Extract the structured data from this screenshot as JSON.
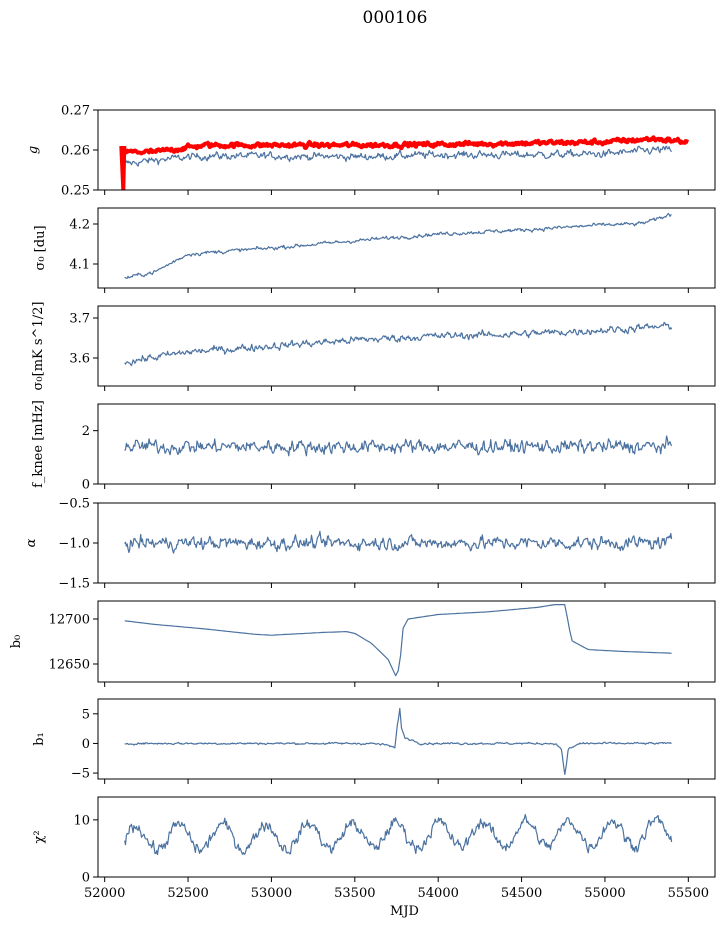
{
  "figure_title": "000106",
  "colors": {
    "series": "#4c72a0",
    "reference": "#ff0000",
    "axis": "#000000"
  },
  "chart_data": [
    {
      "type": "line",
      "ylabel": "g",
      "ylim": [
        0.25,
        0.27
      ],
      "yticks": [
        0.25,
        0.26,
        0.27
      ],
      "yticklabels": [
        "0.25",
        "0.26",
        "0.27"
      ],
      "grid": false,
      "xlim": [
        51960,
        55660
      ],
      "series": [
        {
          "role": "measured",
          "color": "#4c72a0",
          "base": [
            [
              52120,
              0.2565
            ],
            [
              52300,
              0.2575
            ],
            [
              52600,
              0.2585
            ],
            [
              53000,
              0.2585
            ],
            [
              53500,
              0.2583
            ],
            [
              54000,
              0.2588
            ],
            [
              54500,
              0.2588
            ],
            [
              55000,
              0.259
            ],
            [
              55300,
              0.26
            ],
            [
              55400,
              0.26
            ]
          ],
          "noise": 0.0008
        },
        {
          "role": "reference",
          "color": "#ff0000",
          "base": [
            [
              52120,
              0.2595
            ],
            [
              52300,
              0.2595
            ],
            [
              52600,
              0.2612
            ],
            [
              53000,
              0.2612
            ],
            [
              53500,
              0.2612
            ],
            [
              54000,
              0.2614
            ],
            [
              54500,
              0.2617
            ],
            [
              55000,
              0.262
            ],
            [
              55300,
              0.2628
            ],
            [
              55500,
              0.262
            ]
          ],
          "noise": 0.0005,
          "dip": [
            [
              52100,
              0.261
            ],
            [
              52112,
              0.25
            ]
          ]
        }
      ]
    },
    {
      "type": "line",
      "ylabel": "σ₀ [du]",
      "ylim": [
        4.04,
        4.24
      ],
      "yticks": [
        4.1,
        4.2
      ],
      "yticklabels": [
        "4.1",
        "4.2"
      ],
      "grid": false,
      "xlim": [
        51960,
        55660
      ],
      "series": [
        {
          "color": "#4c72a0",
          "base": [
            [
              52120,
              4.065
            ],
            [
              52300,
              4.08
            ],
            [
              52500,
              4.125
            ],
            [
              53000,
              4.14
            ],
            [
              53500,
              4.158
            ],
            [
              54000,
              4.175
            ],
            [
              54500,
              4.185
            ],
            [
              55000,
              4.198
            ],
            [
              55200,
              4.2
            ],
            [
              55300,
              4.21
            ],
            [
              55400,
              4.225
            ]
          ],
          "noise": 0.004
        }
      ]
    },
    {
      "type": "line",
      "ylabel": "σ₀[mK s^1/2]",
      "ylim": [
        3.53,
        3.73
      ],
      "yticks": [
        3.6,
        3.7
      ],
      "yticklabels": [
        "3.6",
        "3.7"
      ],
      "grid": false,
      "xlim": [
        51960,
        55660
      ],
      "series": [
        {
          "color": "#4c72a0",
          "base": [
            [
              52120,
              3.59
            ],
            [
              52500,
              3.615
            ],
            [
              53000,
              3.63
            ],
            [
              53500,
              3.645
            ],
            [
              54000,
              3.655
            ],
            [
              54500,
              3.66
            ],
            [
              55000,
              3.67
            ],
            [
              55400,
              3.68
            ]
          ],
          "noise": 0.008
        }
      ]
    },
    {
      "type": "line",
      "ylabel": "f_knee [mHz]",
      "ylim": [
        0,
        3
      ],
      "yticks": [
        0,
        2
      ],
      "yticklabels": [
        "0",
        "2"
      ],
      "grid": false,
      "xlim": [
        51960,
        55660
      ],
      "series": [
        {
          "color": "#4c72a0",
          "base": [
            [
              52120,
              1.4
            ],
            [
              55400,
              1.4
            ]
          ],
          "noise": 0.22
        }
      ]
    },
    {
      "type": "line",
      "ylabel": "α",
      "ylim": [
        -1.5,
        -0.5
      ],
      "yticks": [
        -1.5,
        -1.0,
        -0.5
      ],
      "yticklabels": [
        "−1.5",
        "−1.0",
        "−0.5"
      ],
      "grid": false,
      "xlim": [
        51960,
        55660
      ],
      "series": [
        {
          "color": "#4c72a0",
          "base": [
            [
              52120,
              -1.0
            ],
            [
              55400,
              -1.0
            ]
          ],
          "noise": 0.07
        }
      ]
    },
    {
      "type": "line",
      "ylabel": "b₀",
      "ylim": [
        12630,
        12720
      ],
      "yticks": [
        12650,
        12700
      ],
      "yticklabels": [
        "12650",
        "12700"
      ],
      "grid": false,
      "xlim": [
        51960,
        55660
      ],
      "series": [
        {
          "color": "#4c72a0",
          "noise": 0,
          "base": [
            [
              52120,
              12698
            ],
            [
              52300,
              12694
            ],
            [
              52600,
              12689
            ],
            [
              52900,
              12683
            ],
            [
              53000,
              12682
            ],
            [
              53300,
              12685
            ],
            [
              53450,
              12686
            ],
            [
              53500,
              12684
            ],
            [
              53600,
              12673
            ],
            [
              53700,
              12655
            ],
            [
              53750,
              12635
            ],
            [
              53770,
              12650
            ],
            [
              53790,
              12690
            ],
            [
              53820,
              12700
            ],
            [
              54000,
              12705
            ],
            [
              54300,
              12708
            ],
            [
              54600,
              12713
            ],
            [
              54700,
              12716
            ],
            [
              54760,
              12716
            ],
            [
              54800,
              12676
            ],
            [
              54900,
              12666
            ],
            [
              55100,
              12664
            ],
            [
              55400,
              12662
            ]
          ]
        }
      ]
    },
    {
      "type": "line",
      "ylabel": "b₁",
      "ylim": [
        -6,
        7.5
      ],
      "yticks": [
        -5,
        0,
        5
      ],
      "yticklabels": [
        "−5",
        "0",
        "5"
      ],
      "grid": false,
      "xlim": [
        51960,
        55660
      ],
      "series": [
        {
          "color": "#4c72a0",
          "noise": 0.15,
          "base": [
            [
              52120,
              0
            ],
            [
              53600,
              0
            ],
            [
              53700,
              -0.3
            ],
            [
              53740,
              -0.8
            ],
            [
              53755,
              3
            ],
            [
              53770,
              6
            ],
            [
              53780,
              2.5
            ],
            [
              53800,
              1
            ],
            [
              53900,
              0
            ],
            [
              54700,
              0
            ],
            [
              54740,
              -1
            ],
            [
              54760,
              -5.5
            ],
            [
              54780,
              -1
            ],
            [
              54850,
              0
            ],
            [
              55400,
              0
            ]
          ]
        }
      ]
    },
    {
      "type": "line",
      "ylabel": "χ²",
      "xlabel": "MJD",
      "ylim": [
        0,
        14
      ],
      "yticks": [
        0,
        10
      ],
      "yticklabels": [
        "0",
        "10"
      ],
      "xticks": [
        52000,
        52500,
        53000,
        53500,
        54000,
        54500,
        55000,
        55500
      ],
      "xticklabels": [
        "52000",
        "52500",
        "53000",
        "53500",
        "54000",
        "54500",
        "55000",
        "55500"
      ],
      "grid": false,
      "xlim": [
        51960,
        55660
      ],
      "series": [
        {
          "color": "#4c72a0",
          "base": [
            [
              52120,
              6.8
            ],
            [
              55400,
              7.8
            ]
          ],
          "noise": 0.9,
          "periodic": {
            "amplitude": 2.2,
            "period": 260
          }
        }
      ]
    }
  ]
}
